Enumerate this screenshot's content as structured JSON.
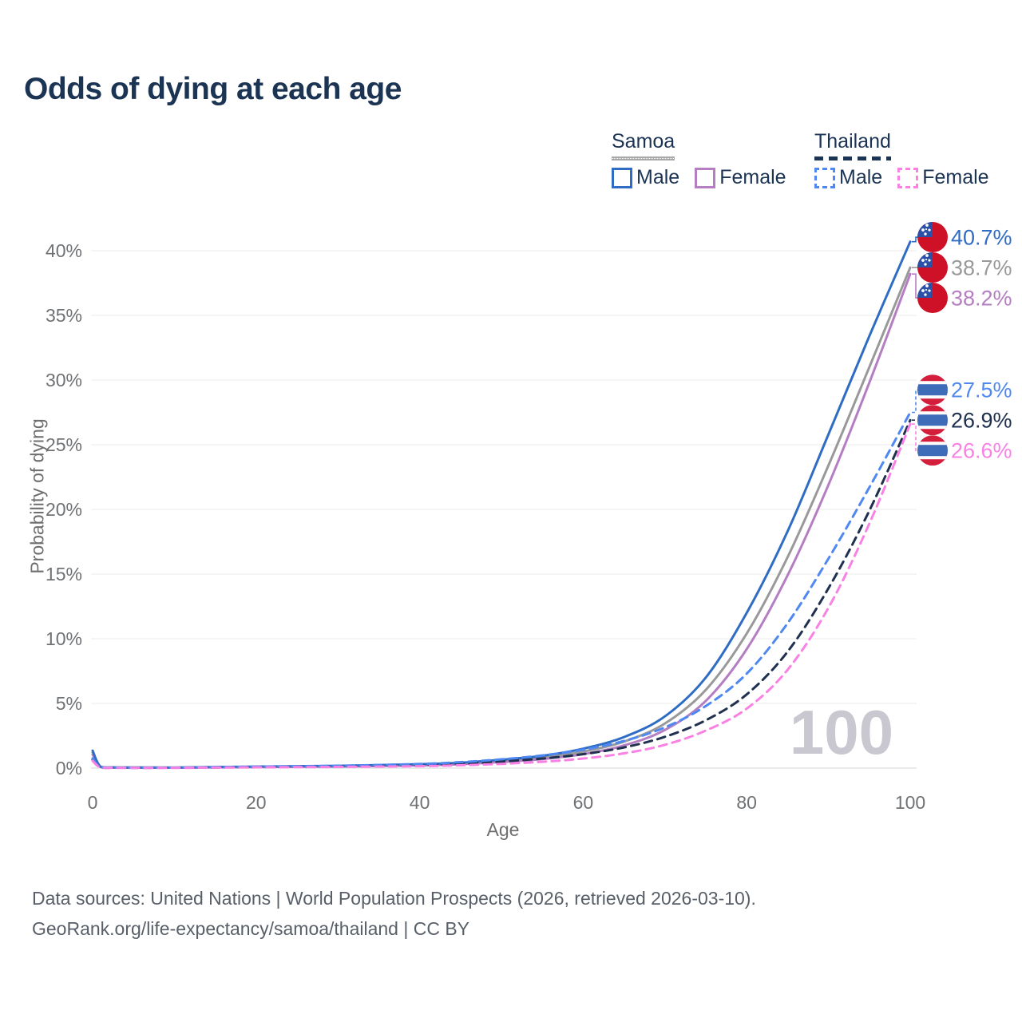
{
  "title": "Odds of dying at each age",
  "legend": {
    "groups": [
      {
        "label": "Samoa",
        "line_style": "solid",
        "header_line_color": "#a9a9a9",
        "items": [
          {
            "label": "Male",
            "color": "#2f6cc3"
          },
          {
            "label": "Female",
            "color": "#b57ec2"
          }
        ]
      },
      {
        "label": "Thailand",
        "line_style": "dashed",
        "header_line_color": "#1c3453",
        "items": [
          {
            "label": "Male",
            "color": "#4f88f1"
          },
          {
            "label": "Female",
            "color": "#fa81e4"
          }
        ]
      }
    ]
  },
  "watermark": "100",
  "footer": {
    "line1": "Data sources: United Nations | World Population Prospects (2026, retrieved 2026-03-10).",
    "line2": "GeoRank.org/life-expectancy/samoa/thailand | CC BY"
  },
  "chart_data": {
    "type": "line",
    "title": "Odds of dying at each age",
    "xlabel": "Age",
    "ylabel": "Probability of dying",
    "xlim": [
      0,
      100
    ],
    "ylim": [
      0,
      42
    ],
    "grid": true,
    "x_ticks": [
      0,
      20,
      40,
      60,
      80,
      100
    ],
    "y_ticks": [
      [
        0,
        "0%"
      ],
      [
        5,
        "5%"
      ],
      [
        10,
        "10%"
      ],
      [
        15,
        "15%"
      ],
      [
        20,
        "20%"
      ],
      [
        25,
        "25%"
      ],
      [
        30,
        "30%"
      ],
      [
        35,
        "35%"
      ],
      [
        40,
        "40%"
      ]
    ],
    "x": [
      0,
      1,
      3,
      10,
      20,
      30,
      40,
      45,
      50,
      55,
      60,
      65,
      70,
      75,
      80,
      85,
      90,
      95,
      100
    ],
    "series": [
      {
        "name": "Samoa — Both sexes",
        "country": "samoa",
        "sex": "both",
        "color": "#999999",
        "dashed": false,
        "end_label": "38.7%",
        "end_value": 38.7,
        "values": [
          1.2,
          0.09,
          0.05,
          0.04,
          0.1,
          0.15,
          0.25,
          0.36,
          0.56,
          0.82,
          1.28,
          2.05,
          3.45,
          6.05,
          10.4,
          16.3,
          23.4,
          31.0,
          38.7
        ]
      },
      {
        "name": "Samoa — Female",
        "country": "samoa",
        "sex": "female",
        "color": "#b57ec2",
        "dashed": false,
        "end_label": "38.2%",
        "end_value": 38.2,
        "values": [
          1.05,
          0.08,
          0.04,
          0.03,
          0.08,
          0.12,
          0.21,
          0.3,
          0.47,
          0.7,
          1.08,
          1.75,
          2.95,
          5.2,
          9.2,
          14.9,
          21.9,
          29.8,
          38.2
        ]
      },
      {
        "name": "Samoa — Male",
        "country": "samoa",
        "sex": "male",
        "color": "#2f6cc3",
        "dashed": false,
        "end_label": "40.7%",
        "end_value": 40.7,
        "values": [
          1.35,
          0.1,
          0.05,
          0.04,
          0.12,
          0.18,
          0.3,
          0.42,
          0.65,
          0.95,
          1.5,
          2.4,
          4.0,
          7.0,
          12.0,
          18.3,
          25.8,
          33.4,
          40.7
        ]
      },
      {
        "name": "Thailand — Both sexes",
        "country": "thailand",
        "sex": "both",
        "color": "#20314f",
        "dashed": true,
        "end_label": "26.9%",
        "end_value": 26.9,
        "values": [
          0.65,
          0.05,
          0.03,
          0.03,
          0.08,
          0.14,
          0.24,
          0.34,
          0.51,
          0.74,
          1.08,
          1.6,
          2.42,
          3.7,
          5.7,
          9.0,
          13.9,
          19.9,
          26.9
        ]
      },
      {
        "name": "Thailand — Male",
        "country": "thailand",
        "sex": "male",
        "color": "#4f88f1",
        "dashed": true,
        "end_label": "27.5%",
        "end_value": 27.5,
        "values": [
          0.75,
          0.06,
          0.03,
          0.03,
          0.11,
          0.18,
          0.32,
          0.46,
          0.68,
          0.98,
          1.42,
          2.1,
          3.15,
          4.8,
          7.3,
          11.2,
          16.2,
          21.7,
          27.5
        ]
      },
      {
        "name": "Thailand — Female",
        "country": "thailand",
        "sex": "female",
        "color": "#fa81e4",
        "dashed": true,
        "end_label": "26.6%",
        "end_value": 26.6,
        "values": [
          0.55,
          0.05,
          0.02,
          0.02,
          0.06,
          0.09,
          0.15,
          0.22,
          0.33,
          0.49,
          0.74,
          1.14,
          1.8,
          2.9,
          4.6,
          7.6,
          12.4,
          18.9,
          26.6
        ]
      }
    ],
    "flag_colors": {
      "samoa_red": "#ce1126",
      "samoa_blue": "#2b50a8",
      "thailand_red": "#d41f3c",
      "thailand_blue": "#3f6cb8",
      "thailand_white": "#ffffff"
    },
    "legend_position": "top-right"
  }
}
